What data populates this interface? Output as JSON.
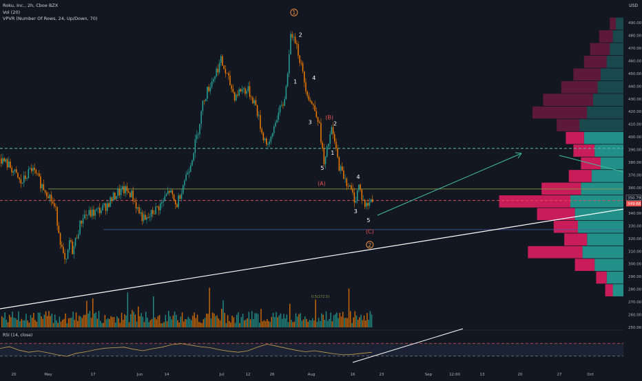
{
  "header": {
    "symbol_line": "Roku, Inc., 2h, Cboe BZX",
    "vol_line": "Vol (20)",
    "vpvr_line": "VPVR (Number Of Rows, 24, Up/Down, 70)",
    "rsi_line": "RSI (14, close)",
    "currency": "USD"
  },
  "colors": {
    "background": "#131722",
    "up": "#26a69a",
    "down": "#f57c00",
    "vp_up": "#26a69a",
    "vp_down": "#e91e63",
    "resistance_dashed": "#5fbfa8",
    "support_dashed": "#ef5350",
    "olive_line": "#8c9a46",
    "blue_line": "#4a5fa8",
    "trendline": "#ffffff",
    "arrow": "#3fbf9f",
    "wave_orange": "#f09040",
    "wave_red": "#ef5350",
    "rsi_line": "#c8a24a"
  },
  "chart_data": {
    "type": "candlestick",
    "x_ticks": [
      "20",
      "May",
      "17",
      "Jun",
      "14",
      "Jul",
      "12",
      "26",
      "Aug",
      "16",
      "23",
      "Sep",
      "12:00",
      "13",
      "20",
      "27",
      "Oct"
    ],
    "price_axis": {
      "min": 240,
      "max": 500,
      "ticks": [
        490,
        480,
        470,
        460,
        450,
        440,
        430,
        420,
        410,
        400,
        390,
        380,
        370,
        360,
        350,
        340,
        330,
        320,
        310,
        300,
        290,
        280,
        270,
        260,
        250
      ]
    },
    "price_labels": {
      "last": "350.79",
      "current": "349.68"
    },
    "price_path": [
      [
        0,
        383
      ],
      [
        15,
        376
      ],
      [
        30,
        363
      ],
      [
        45,
        375
      ],
      [
        60,
        362
      ],
      [
        70,
        355
      ],
      [
        80,
        342
      ],
      [
        90,
        308
      ],
      [
        95,
        298
      ],
      [
        100,
        318
      ],
      [
        105,
        310
      ],
      [
        112,
        325
      ],
      [
        120,
        338
      ],
      [
        135,
        340
      ],
      [
        150,
        344
      ],
      [
        160,
        350
      ],
      [
        170,
        356
      ],
      [
        180,
        358
      ],
      [
        190,
        355
      ],
      [
        200,
        342
      ],
      [
        210,
        333
      ],
      [
        220,
        340
      ],
      [
        235,
        348
      ],
      [
        245,
        358
      ],
      [
        255,
        345
      ],
      [
        265,
        363
      ],
      [
        275,
        378
      ],
      [
        285,
        400
      ],
      [
        295,
        430
      ],
      [
        305,
        442
      ],
      [
        315,
        454
      ],
      [
        320,
        460
      ],
      [
        330,
        446
      ],
      [
        340,
        432
      ],
      [
        350,
        438
      ],
      [
        360,
        436
      ],
      [
        370,
        426
      ],
      [
        380,
        402
      ],
      [
        390,
        392
      ],
      [
        400,
        415
      ],
      [
        410,
        425
      ],
      [
        415,
        440
      ],
      [
        420,
        475
      ],
      [
        425,
        484
      ],
      [
        430,
        472
      ],
      [
        435,
        460
      ],
      [
        440,
        446
      ],
      [
        445,
        436
      ],
      [
        450,
        428
      ],
      [
        460,
        418
      ],
      [
        465,
        400
      ],
      [
        470,
        376
      ],
      [
        475,
        392
      ],
      [
        480,
        406
      ],
      [
        485,
        396
      ],
      [
        490,
        380
      ],
      [
        495,
        372
      ],
      [
        500,
        368
      ],
      [
        505,
        362
      ],
      [
        510,
        356
      ],
      [
        515,
        350
      ],
      [
        520,
        362
      ],
      [
        525,
        352
      ],
      [
        530,
        345
      ],
      [
        535,
        348
      ],
      [
        540,
        352
      ]
    ],
    "volume_profile": [
      {
        "price": 489,
        "up": 10,
        "down": 8
      },
      {
        "price": 479,
        "up": 14,
        "down": 18
      },
      {
        "price": 469,
        "up": 18,
        "down": 26
      },
      {
        "price": 459,
        "up": 22,
        "down": 30
      },
      {
        "price": 449,
        "up": 30,
        "down": 36
      },
      {
        "price": 439,
        "up": 34,
        "down": 48
      },
      {
        "price": 429,
        "up": 40,
        "down": 66
      },
      {
        "price": 419,
        "up": 48,
        "down": 72
      },
      {
        "price": 409,
        "up": 58,
        "down": 30
      },
      {
        "price": 399,
        "up": 52,
        "down": 24
      },
      {
        "price": 389,
        "up": 38,
        "down": 28
      },
      {
        "price": 379,
        "up": 30,
        "down": 26
      },
      {
        "price": 369,
        "up": 42,
        "down": 30
      },
      {
        "price": 359,
        "up": 56,
        "down": 52
      },
      {
        "price": 349,
        "up": 70,
        "down": 94
      },
      {
        "price": 339,
        "up": 64,
        "down": 50
      },
      {
        "price": 329,
        "up": 60,
        "down": 32
      },
      {
        "price": 319,
        "up": 48,
        "down": 30
      },
      {
        "price": 309,
        "up": 54,
        "down": 72
      },
      {
        "price": 299,
        "up": 38,
        "down": 26
      },
      {
        "price": 289,
        "up": 22,
        "down": 14
      },
      {
        "price": 279,
        "up": 14,
        "down": 10
      }
    ],
    "levels": {
      "resistance_dashed": 391,
      "support_dashed": 350,
      "olive": 359,
      "blue": 327
    },
    "rsi": {
      "ticks": [
        75,
        50,
        25
      ],
      "values": [
        55,
        62,
        48,
        40,
        45,
        38,
        30,
        24,
        36,
        42,
        50,
        56,
        58,
        60,
        52,
        46,
        54,
        60,
        70,
        74,
        68,
        62,
        58,
        50,
        44,
        40,
        46,
        60,
        72,
        64,
        56,
        48,
        42,
        46,
        40,
        34,
        30,
        32,
        36,
        40
      ]
    }
  },
  "annotations": {
    "wave_labels": [
      {
        "text": "1",
        "price": 497,
        "style": "circled-orange",
        "xf": 0.458
      },
      {
        "text": "2",
        "price": 479,
        "style": "white",
        "xf": 0.468
      },
      {
        "text": "1",
        "price": 442,
        "style": "white",
        "xf": 0.46
      },
      {
        "text": "4",
        "price": 445,
        "style": "white",
        "xf": 0.489
      },
      {
        "text": "(B)",
        "price": 414,
        "style": "red",
        "xf": 0.513
      },
      {
        "text": "3",
        "price": 410,
        "style": "white",
        "xf": 0.483
      },
      {
        "text": "2",
        "price": 409,
        "style": "white",
        "xf": 0.522
      },
      {
        "text": "1",
        "price": 386,
        "style": "white",
        "xf": 0.518
      },
      {
        "text": "5",
        "price": 374,
        "style": "white",
        "xf": 0.502
      },
      {
        "text": "4",
        "price": 367,
        "style": "white",
        "xf": 0.558
      },
      {
        "text": "(A)",
        "price": 362,
        "style": "red",
        "xf": 0.501
      },
      {
        "text": "3",
        "price": 340,
        "style": "white",
        "xf": 0.554
      },
      {
        "text": "5",
        "price": 333,
        "style": "white",
        "xf": 0.574
      },
      {
        "text": "(C)",
        "price": 324,
        "style": "red",
        "xf": 0.576
      },
      {
        "text": "2",
        "price": 314,
        "style": "circled-orange",
        "xf": 0.576
      }
    ],
    "fib_label": "0.5(272.5)"
  }
}
